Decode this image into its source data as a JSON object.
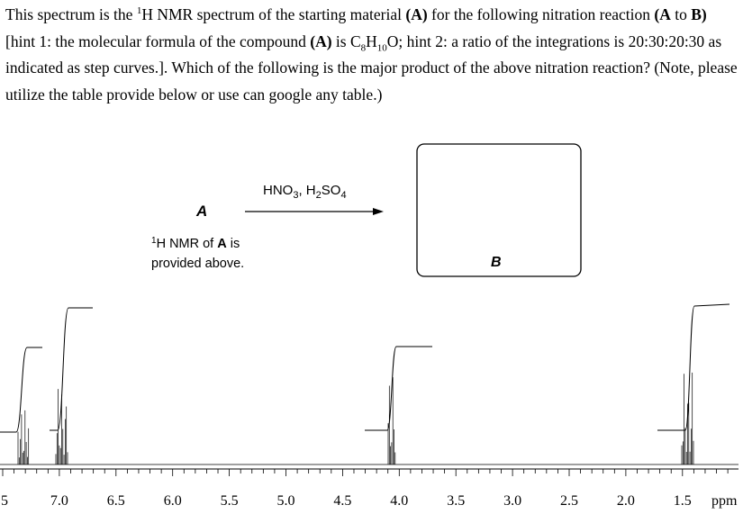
{
  "question": [
    "This spectrum is the ",
    "1",
    "H NMR spectrum of the starting material ",
    "(A)",
    " for the following nitration reaction ",
    "(A",
    " to ",
    "B)",
    " [hint 1: the molecular formula of the compound ",
    "(A)",
    " is C",
    "8",
    "H",
    "10",
    "O; hint 2: a ratio of the integrations is 20:30:20:30 as indicated as step curves.].  Which of the following is the major product of the above nitration reaction? (Note, please utilize the table provide below or use can google any table.)"
  ],
  "scheme": {
    "reactant": "A",
    "reagents": [
      "HNO",
      "3",
      ", H",
      "2",
      "SO",
      "4"
    ],
    "note": [
      "1",
      "H NMR of ",
      "A",
      " is",
      "provided above."
    ],
    "product": "B"
  },
  "spectrum": {
    "axis_labels": [
      ".5",
      "7.0",
      "6.5",
      "6.0",
      "5.5",
      "5.0",
      "4.5",
      "4.0",
      "3.5",
      "3.0",
      "2.5",
      "2.0",
      "1.5"
    ],
    "unit": "ppm"
  }
}
